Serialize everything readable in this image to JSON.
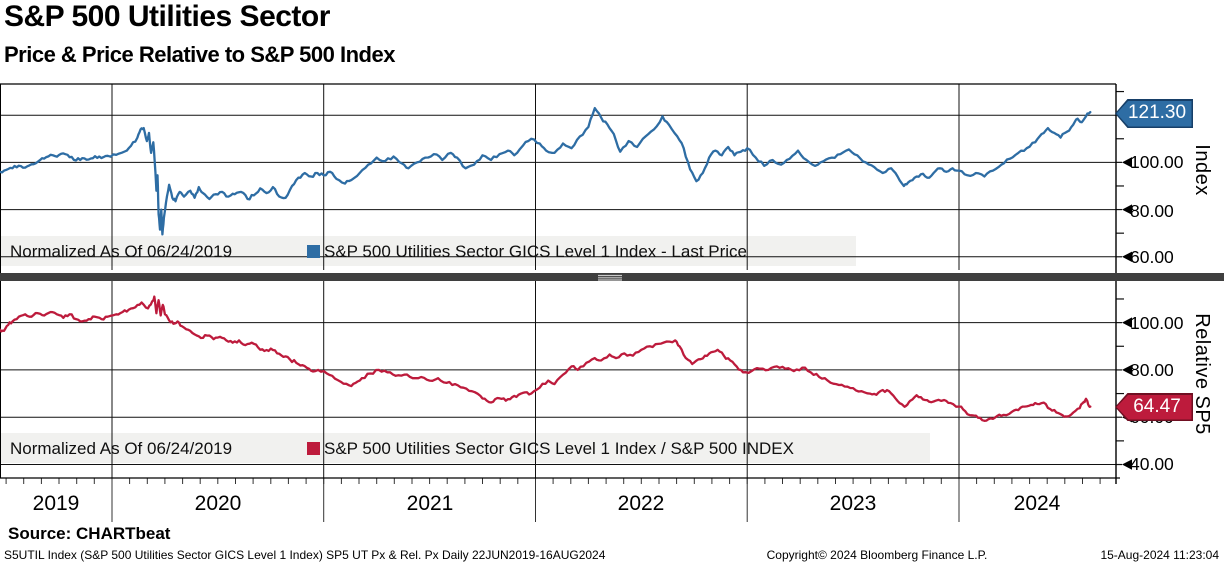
{
  "header": {
    "title": "S&P 500 Utilities Sector",
    "subtitle": "Price & Price Relative to S&P 500 Index"
  },
  "source_line": "Source: CHARTbeat",
  "footer": {
    "left": "S5UTIL Index (S&P 500 Utilities Sector GICS Level 1 Index) SP5 UT Px & Rel. Px  Daily 22JUN2019-16AUG2024",
    "center": "Copyright© 2024 Bloomberg Finance L.P.",
    "right": "15-Aug-2024 11:23:04"
  },
  "x_axis": {
    "years": [
      "2019",
      "2020",
      "2021",
      "2022",
      "2023",
      "2024"
    ]
  },
  "panels": [
    {
      "axis_label": "Index",
      "badge": "121.30",
      "ytick_labels": [
        "100.00",
        "80.00",
        "60.00"
      ],
      "legend": {
        "normalized_label": "Normalized As Of 06/24/2019",
        "series_label": "S&P 500 Utilities Sector GICS Level 1 Index - Last Price"
      },
      "colors": {
        "line": "#2e6da4",
        "badge": "#2e6da4",
        "badge_border": "#173f68"
      }
    },
    {
      "axis_label": "Relative SP5",
      "badge": "64.47",
      "ytick_labels": [
        "100.00",
        "80.00",
        "60.00",
        "40.00"
      ],
      "legend": {
        "normalized_label": "Normalized As Of 06/24/2019",
        "series_label": "S&P 500 Utilities Sector GICS Level 1 Index / S&P 500 INDEX"
      },
      "colors": {
        "line": "#bd1b3c",
        "badge": "#bd1b3c",
        "badge_border": "#700f22"
      }
    }
  ],
  "chart_data": [
    {
      "type": "line",
      "name": "S&P 500 Utilities Sector GICS Level 1 Index - Last Price",
      "normalized_as_of": "06/24/2019",
      "last_value": 121.3,
      "x_range_years": [
        2019.471,
        2024.62
      ],
      "ylim": [
        54.4,
        133.2
      ],
      "yticks_major": [
        100,
        80,
        60
      ],
      "yticks_minor": [
        130,
        120,
        110,
        90,
        70
      ],
      "grid_values": [
        120,
        100,
        80,
        60
      ],
      "x_years": [
        2019.471,
        2019.5,
        2019.53,
        2019.56,
        2019.59,
        2019.62,
        2019.65,
        2019.68,
        2019.71,
        2019.74,
        2019.77,
        2019.8,
        2019.83,
        2019.86,
        2019.89,
        2019.92,
        2019.95,
        2019.98,
        2020.02,
        2020.06,
        2020.09,
        2020.12,
        2020.135,
        2020.15,
        2020.165,
        2020.175,
        2020.185,
        2020.195,
        2020.205,
        2020.21,
        2020.215,
        2020.22,
        2020.227,
        2020.233,
        2020.238,
        2020.245,
        2020.255,
        2020.27,
        2020.285,
        2020.3,
        2020.32,
        2020.34,
        2020.37,
        2020.39,
        2020.41,
        2020.43,
        2020.46,
        2020.49,
        2020.52,
        2020.55,
        2020.58,
        2020.61,
        2020.64,
        2020.67,
        2020.7,
        2020.73,
        2020.76,
        2020.79,
        2020.82,
        2020.85,
        2020.88,
        2020.91,
        2020.94,
        2020.97,
        2021.0,
        2021.03,
        2021.06,
        2021.1,
        2021.13,
        2021.17,
        2021.21,
        2021.25,
        2021.29,
        2021.33,
        2021.37,
        2021.4,
        2021.44,
        2021.48,
        2021.52,
        2021.56,
        2021.6,
        2021.63,
        2021.67,
        2021.71,
        2021.75,
        2021.79,
        2021.83,
        2021.87,
        2021.9,
        2021.94,
        2021.98,
        2022.02,
        2022.05,
        2022.09,
        2022.13,
        2022.17,
        2022.21,
        2022.25,
        2022.28,
        2022.31,
        2022.34,
        2022.37,
        2022.4,
        2022.44,
        2022.48,
        2022.52,
        2022.56,
        2022.6,
        2022.63,
        2022.67,
        2022.7,
        2022.73,
        2022.76,
        2022.79,
        2022.82,
        2022.85,
        2022.88,
        2022.91,
        2022.94,
        2022.97,
        2023.0,
        2023.04,
        2023.08,
        2023.12,
        2023.16,
        2023.2,
        2023.24,
        2023.28,
        2023.32,
        2023.36,
        2023.4,
        2023.44,
        2023.48,
        2023.52,
        2023.56,
        2023.6,
        2023.64,
        2023.68,
        2023.71,
        2023.74,
        2023.76,
        2023.79,
        2023.82,
        2023.85,
        2023.88,
        2023.91,
        2023.94,
        2023.97,
        2024.0,
        2024.04,
        2024.08,
        2024.12,
        2024.16,
        2024.2,
        2024.24,
        2024.28,
        2024.32,
        2024.36,
        2024.39,
        2024.42,
        2024.45,
        2024.48,
        2024.51,
        2024.54,
        2024.56,
        2024.58,
        2024.6,
        2024.62
      ],
      "values": [
        96,
        96.8,
        97.5,
        98.6,
        97.8,
        99.2,
        100.3,
        101.6,
        103.2,
        102.4,
        103.8,
        102.2,
        100.8,
        101.8,
        101.2,
        102.6,
        101.8,
        102.8,
        103.2,
        104.6,
        107,
        110.5,
        114,
        114.5,
        109,
        112.5,
        104,
        108.5,
        96,
        88,
        94.5,
        78,
        71.5,
        80,
        69.5,
        76.5,
        83,
        90.5,
        85,
        83.5,
        87.5,
        85.5,
        88,
        85,
        89.5,
        87,
        84.5,
        86.5,
        87.5,
        85.5,
        86.5,
        87.5,
        84.5,
        86,
        89,
        87,
        89.5,
        85.5,
        85,
        90,
        93.5,
        95.5,
        94,
        95.5,
        94.5,
        96,
        93,
        91,
        92.5,
        95.5,
        99,
        102,
        100.5,
        102.5,
        99.5,
        97.5,
        100,
        102,
        103.5,
        101,
        104,
        102,
        97.5,
        99,
        103,
        101,
        103.5,
        105,
        103,
        107,
        110,
        108,
        105,
        104,
        108,
        106,
        111,
        115,
        123,
        119,
        116,
        112,
        104.5,
        109,
        106.5,
        111,
        114,
        119.5,
        116,
        111,
        106,
        97,
        92,
        95.5,
        102,
        105,
        103,
        106.5,
        103,
        104.5,
        106,
        102,
        98.5,
        101,
        99,
        101.5,
        105,
        101,
        98.5,
        100.5,
        102,
        103.5,
        105.5,
        103,
        100,
        98,
        95.5,
        97.5,
        94,
        90,
        91.5,
        93.5,
        95,
        93.5,
        95.5,
        97.5,
        96,
        97.5,
        96.5,
        94.5,
        95.5,
        94,
        96.5,
        99,
        101.5,
        104,
        106,
        108.5,
        112,
        114.5,
        112.5,
        110.5,
        113,
        116,
        118.5,
        117,
        119.5,
        121.3
      ]
    },
    {
      "type": "line",
      "name": "S&P 500 Utilities Sector GICS Level 1 Index / S&P 500 INDEX",
      "normalized_as_of": "06/24/2019",
      "last_value": 64.47,
      "x_range_years": [
        2019.471,
        2024.62
      ],
      "ylim": [
        34.3,
        117.6
      ],
      "yticks_major": [
        100,
        80,
        60,
        40
      ],
      "yticks_minor": [
        110,
        90,
        70,
        50
      ],
      "grid_values": [
        100,
        80,
        60,
        40
      ],
      "x_years": [
        2019.471,
        2019.49,
        2019.51,
        2019.53,
        2019.56,
        2019.59,
        2019.62,
        2019.65,
        2019.68,
        2019.71,
        2019.74,
        2019.77,
        2019.8,
        2019.83,
        2019.86,
        2019.89,
        2019.92,
        2019.95,
        2019.98,
        2020.02,
        2020.05,
        2020.08,
        2020.11,
        2020.14,
        2020.17,
        2020.19,
        2020.2,
        2020.21,
        2020.22,
        2020.23,
        2020.24,
        2020.25,
        2020.27,
        2020.29,
        2020.31,
        2020.33,
        2020.36,
        2020.39,
        2020.42,
        2020.45,
        2020.48,
        2020.51,
        2020.54,
        2020.57,
        2020.6,
        2020.63,
        2020.66,
        2020.69,
        2020.72,
        2020.75,
        2020.78,
        2020.81,
        2020.84,
        2020.87,
        2020.9,
        2020.93,
        2020.96,
        2021.0,
        2021.04,
        2021.08,
        2021.12,
        2021.15,
        2021.18,
        2021.22,
        2021.26,
        2021.3,
        2021.34,
        2021.38,
        2021.42,
        2021.46,
        2021.5,
        2021.54,
        2021.58,
        2021.62,
        2021.66,
        2021.7,
        2021.74,
        2021.77,
        2021.8,
        2021.83,
        2021.86,
        2021.89,
        2021.92,
        2021.95,
        2021.98,
        2022.02,
        2022.06,
        2022.09,
        2022.13,
        2022.17,
        2022.2,
        2022.24,
        2022.28,
        2022.31,
        2022.35,
        2022.38,
        2022.42,
        2022.46,
        2022.5,
        2022.54,
        2022.58,
        2022.62,
        2022.66,
        2022.68,
        2022.71,
        2022.74,
        2022.77,
        2022.8,
        2022.83,
        2022.86,
        2022.89,
        2022.92,
        2022.95,
        2022.98,
        2023.02,
        2023.06,
        2023.1,
        2023.14,
        2023.18,
        2023.22,
        2023.26,
        2023.3,
        2023.34,
        2023.38,
        2023.42,
        2023.46,
        2023.5,
        2023.54,
        2023.58,
        2023.61,
        2023.64,
        2023.67,
        2023.7,
        2023.73,
        2023.75,
        2023.77,
        2023.8,
        2023.83,
        2023.86,
        2023.89,
        2023.93,
        2023.96,
        2024.0,
        2024.03,
        2024.06,
        2024.09,
        2024.12,
        2024.15,
        2024.18,
        2024.21,
        2024.25,
        2024.28,
        2024.31,
        2024.34,
        2024.37,
        2024.4,
        2024.43,
        2024.46,
        2024.49,
        2024.51,
        2024.54,
        2024.57,
        2024.59,
        2024.6,
        2024.61,
        2024.62
      ],
      "values": [
        97,
        96.5,
        99,
        100.5,
        102.5,
        103.5,
        102.5,
        104,
        103,
        104.5,
        103.5,
        102,
        103.5,
        101.5,
        100.5,
        101.5,
        102.5,
        101.5,
        102.5,
        103.5,
        104.5,
        105.5,
        106.5,
        108.5,
        106,
        109,
        111,
        104,
        109.5,
        103,
        107.5,
        103.5,
        101,
        99.5,
        100.5,
        98.5,
        97,
        95,
        93.5,
        94.5,
        93,
        94,
        92.5,
        91.5,
        92.5,
        90.5,
        91.5,
        89.5,
        88,
        89,
        87,
        85.5,
        84.5,
        83,
        82,
        80.5,
        79.5,
        79.5,
        77.5,
        75,
        73.5,
        74.5,
        76.5,
        78.5,
        80,
        79,
        77.5,
        78,
        76.5,
        77,
        75.5,
        76.5,
        74.5,
        74,
        72.5,
        71,
        69,
        67,
        66.5,
        68,
        67,
        68.5,
        69.5,
        70.5,
        70,
        72.5,
        75.5,
        74,
        78,
        81.5,
        80,
        83,
        85,
        84,
        86.5,
        85,
        87,
        86,
        88.5,
        90,
        91,
        92,
        92.5,
        90,
        85,
        82.5,
        84.5,
        86,
        87.5,
        88.5,
        86,
        84,
        81.5,
        79,
        79.5,
        80.5,
        80,
        81.5,
        80.5,
        79.5,
        81,
        79,
        77,
        75.5,
        74,
        73,
        72.3,
        71,
        70,
        69.5,
        71.5,
        71,
        68,
        65.5,
        64.8,
        67,
        69.3,
        67.5,
        66.5,
        67,
        67.3,
        66,
        64.5,
        62.5,
        60.8,
        59.8,
        58.5,
        59.5,
        60.5,
        61,
        62.3,
        63,
        64.5,
        65.2,
        65.6,
        66.2,
        63.5,
        62,
        60.8,
        60.3,
        62,
        63.8,
        66.5,
        67.8,
        65.5,
        64.47
      ]
    }
  ]
}
